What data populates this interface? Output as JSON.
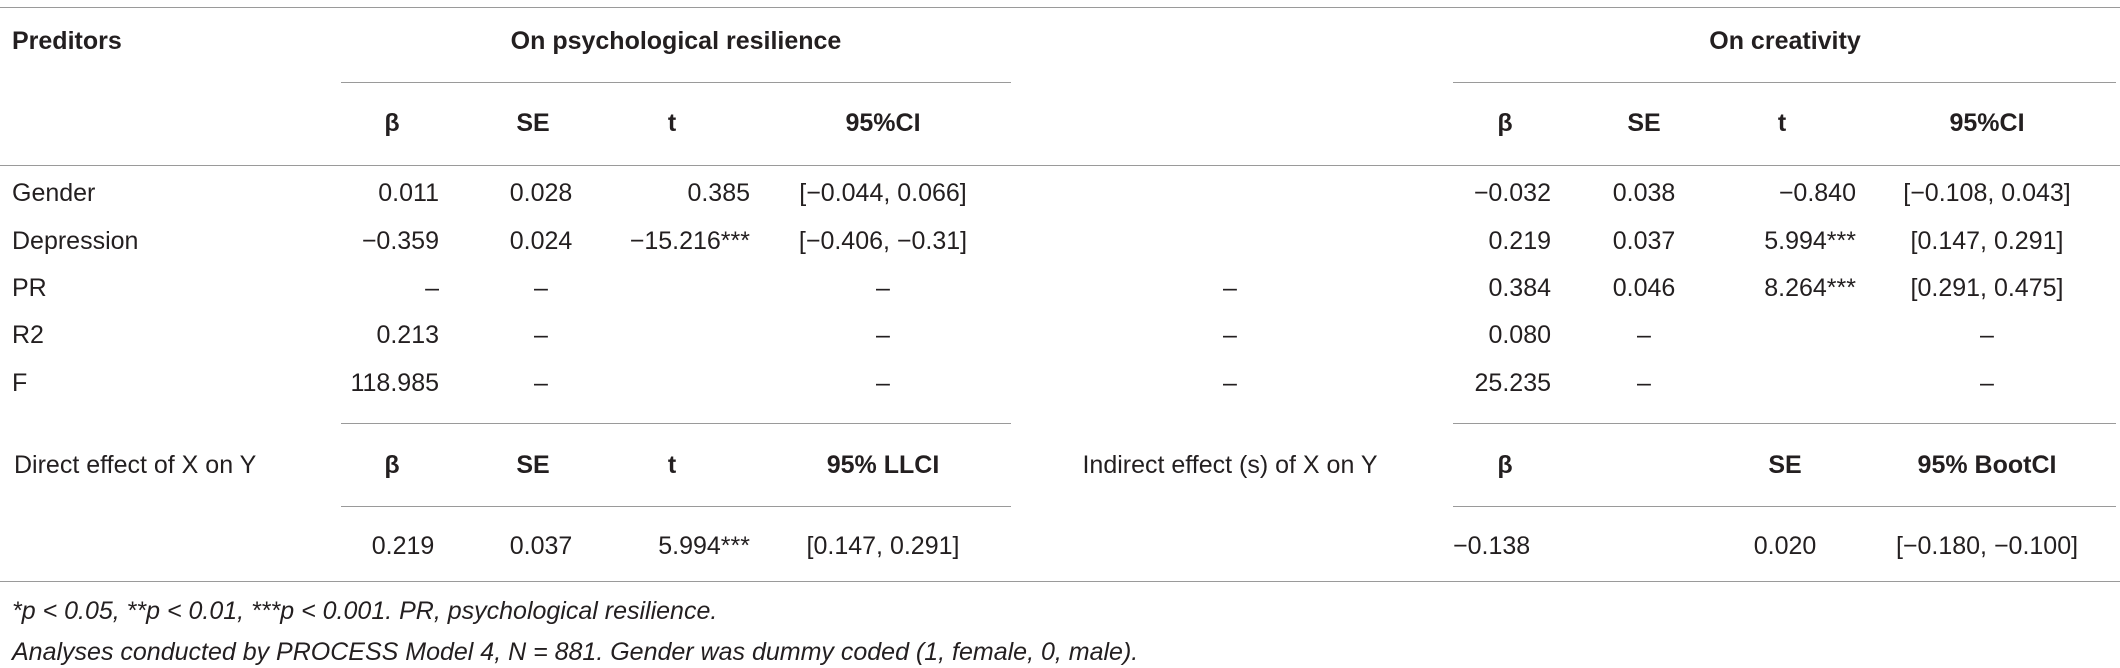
{
  "header": {
    "predictors": "Preditors",
    "group1": "On psychological resilience",
    "group2": "On creativity"
  },
  "subheader": [
    "β",
    "SE",
    "t",
    "95%CI",
    "β",
    "SE",
    "t",
    "95%CI"
  ],
  "rows": [
    [
      "Gender",
      "0.011",
      "0.028",
      "0.385",
      "[−0.044, 0.066]",
      null,
      "−0.032",
      "0.038",
      "−0.840",
      "[−0.108, 0.043]"
    ],
    [
      "Depression",
      "−0.359",
      "0.024",
      "−15.216***",
      "[−0.406, −0.31]",
      null,
      "0.219",
      "0.037",
      "5.994***",
      "[0.147, 0.291]"
    ],
    [
      "PR",
      "–",
      "–",
      null,
      "–",
      "–",
      "0.384",
      "0.046",
      "8.264***",
      "[0.291, 0.475]"
    ],
    [
      "R2",
      "0.213",
      "–",
      null,
      "–",
      "–",
      "0.080",
      "–",
      null,
      "–"
    ],
    [
      "F",
      "118.985",
      "–",
      null,
      "–",
      "–",
      "25.235",
      "–",
      null,
      "–"
    ]
  ],
  "effects": {
    "header": [
      "Direct effect of X on Y",
      "β",
      "SE",
      "t",
      "95% LLCI",
      "Indirect effect (s) of X on Y",
      "β",
      "SE",
      "95% BootCI"
    ],
    "values": [
      "0.219",
      "0.037",
      "5.994***",
      "[0.147, 0.291]",
      "−0.138",
      "0.020",
      "[−0.180, −0.100]"
    ]
  },
  "footnotes": [
    "*p < 0.05, **p < 0.01, ***p < 0.001. PR, psychological resilience.",
    "Analyses conducted by PROCESS Model 4, N = 881. Gender was dummy coded (1, female, 0, male)."
  ]
}
